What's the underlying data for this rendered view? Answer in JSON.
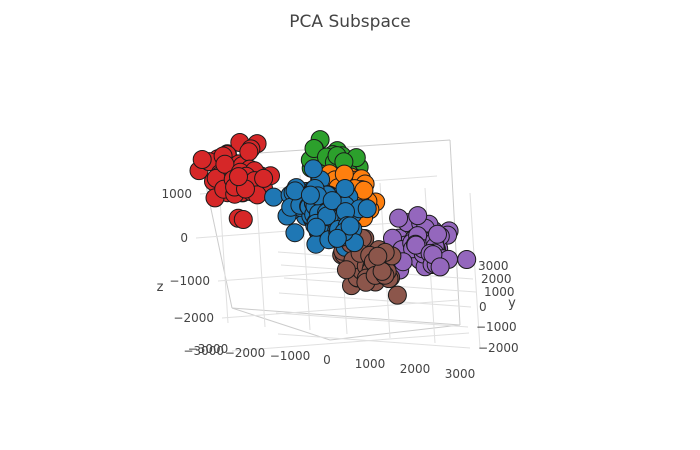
{
  "chart_data": {
    "type": "scatter",
    "title": "PCA Subspace",
    "axes": {
      "x": {
        "label": "",
        "ticks": [
          "−3000",
          "−2000",
          "−1000",
          "0",
          "1000",
          "2000",
          "3000"
        ]
      },
      "y": {
        "label": "y",
        "ticks": [
          "3000",
          "2000",
          "1000",
          "0",
          "−1000",
          "−2000"
        ]
      },
      "z": {
        "label": "z",
        "ticks": [
          "1000",
          "0",
          "−1000",
          "−2000",
          "−3000"
        ]
      }
    },
    "grid": true,
    "legend": "none",
    "series": [
      {
        "color": "#2ca02c",
        "center": [
          300,
          1500,
          1000
        ],
        "spread": 500,
        "count": 55
      },
      {
        "color": "#ff7f0e",
        "center": [
          400,
          800,
          600
        ],
        "spread": 450,
        "count": 50
      },
      {
        "color": "#d62728",
        "center": [
          -2200,
          500,
          700
        ],
        "spread": 550,
        "count": 75
      },
      {
        "color": "#8c564b",
        "center": [
          400,
          -200,
          -900
        ],
        "spread": 500,
        "count": 55
      },
      {
        "color": "#9467bd",
        "center": [
          1800,
          500,
          -400
        ],
        "spread": 550,
        "count": 70
      },
      {
        "color": "#1f77b4",
        "center": [
          -700,
          -300,
          300
        ],
        "spread": 600,
        "count": 130
      }
    ]
  }
}
